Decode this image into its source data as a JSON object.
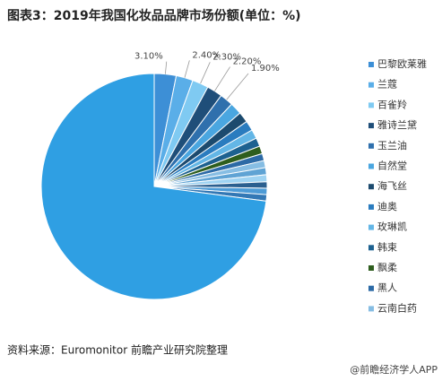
{
  "chart_data": {
    "type": "pie",
    "title": "图表3：2019年我国化妆品品牌市场份额(单位：%)",
    "categories": [
      "巴黎欧莱雅",
      "兰蔻",
      "百雀羚",
      "雅诗兰黛",
      "玉兰油",
      "自然堂",
      "海飞丝",
      "迪奥",
      "玫琳凯",
      "韩束",
      "飘柔",
      "黑人",
      "云南白药",
      null,
      null,
      null,
      null,
      null,
      null
    ],
    "values": [
      3.1,
      2.4,
      2.3,
      2.2,
      1.9,
      1.7,
      1.5,
      1.4,
      1.3,
      1.2,
      1.1,
      1.0,
      1.0,
      1.0,
      1.0,
      0.9,
      0.9,
      0.9,
      72.2
    ],
    "value_labels": [
      "3.10%",
      "2.40%",
      "2.30%",
      "2.20%",
      "1.90%",
      null,
      null,
      null,
      null,
      null,
      null,
      null,
      null,
      null,
      null,
      null,
      null,
      null,
      null
    ],
    "colors": [
      "#3d8fd6",
      "#5aaee8",
      "#7fcaf2",
      "#1f4e79",
      "#2f70ad",
      "#4aa6e0",
      "#1c4a6e",
      "#2a7cbf",
      "#63b6e6",
      "#1d6190",
      "#2e5e1e",
      "#2c6aa6",
      "#86bde3",
      "#5fa3d4",
      "#9fd3f2",
      "#2b5f8f",
      "#4d9bd6",
      "#3378b5",
      "#2f9fe3"
    ],
    "source": "资料来源：Euromonitor 前瞻产业研究院整理",
    "credit": "@前瞻经济学人APP"
  }
}
